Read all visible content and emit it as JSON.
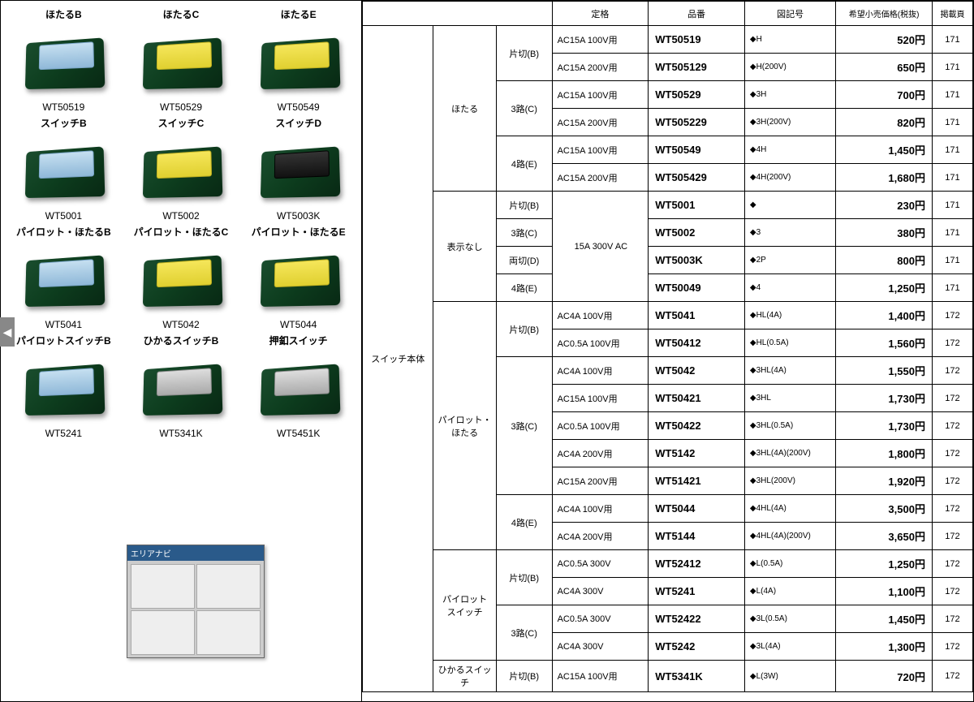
{
  "headers": {
    "rating": "定格",
    "part": "品番",
    "symbol": "図記号",
    "price": "希望小売価格(税抜)",
    "page": "掲載頁"
  },
  "sideCategory": "スイッチ本体",
  "products": [
    {
      "label": "ほたるB",
      "code": "WT50519",
      "color": "blue"
    },
    {
      "label": "ほたるC",
      "code": "WT50529",
      "color": "yellow"
    },
    {
      "label": "ほたるE",
      "code": "WT50549",
      "color": "yellow"
    },
    {
      "label": "スイッチB",
      "code": "WT5001",
      "color": "blue"
    },
    {
      "label": "スイッチC",
      "code": "WT5002",
      "color": "yellow"
    },
    {
      "label": "スイッチD",
      "code": "WT5003K",
      "color": "black"
    },
    {
      "label": "パイロット・ほたるB",
      "code": "WT5041",
      "color": "blue"
    },
    {
      "label": "パイロット・ほたるC",
      "code": "WT5042",
      "color": "yellow"
    },
    {
      "label": "パイロット・ほたるE",
      "code": "WT5044",
      "color": "yellow"
    },
    {
      "label": "パイロットスイッチB",
      "code": "WT5241",
      "color": "blue"
    },
    {
      "label": "ひかるスイッチB",
      "code": "WT5341K",
      "color": "gray"
    },
    {
      "label": "押釦スイッチ",
      "code": "WT5451K",
      "color": "gray"
    }
  ],
  "groups": [
    {
      "name": "ほたる",
      "subs": [
        {
          "name": "片切(B)",
          "rows": [
            {
              "rating": "AC15A 100V用",
              "part": "WT50519",
              "symbol": "◆H",
              "price": "520円",
              "page": "171"
            },
            {
              "rating": "AC15A 200V用",
              "part": "WT505129",
              "symbol": "◆H(200V)",
              "price": "650円",
              "page": "171"
            }
          ]
        },
        {
          "name": "3路(C)",
          "rows": [
            {
              "rating": "AC15A 100V用",
              "part": "WT50529",
              "symbol": "◆3H",
              "price": "700円",
              "page": "171"
            },
            {
              "rating": "AC15A 200V用",
              "part": "WT505229",
              "symbol": "◆3H(200V)",
              "price": "820円",
              "page": "171"
            }
          ]
        },
        {
          "name": "4路(E)",
          "rows": [
            {
              "rating": "AC15A 100V用",
              "part": "WT50549",
              "symbol": "◆4H",
              "price": "1,450円",
              "page": "171"
            },
            {
              "rating": "AC15A 200V用",
              "part": "WT505429",
              "symbol": "◆4H(200V)",
              "price": "1,680円",
              "page": "171"
            }
          ]
        }
      ]
    },
    {
      "name": "表示なし",
      "sharedRating": "15A 300V AC",
      "subs": [
        {
          "name": "片切(B)",
          "rows": [
            {
              "part": "WT5001",
              "symbol": "◆",
              "price": "230円",
              "page": "171"
            }
          ]
        },
        {
          "name": "3路(C)",
          "rows": [
            {
              "part": "WT5002",
              "symbol": "◆3",
              "price": "380円",
              "page": "171"
            }
          ]
        },
        {
          "name": "両切(D)",
          "rows": [
            {
              "part": "WT5003K",
              "symbol": "◆2P",
              "price": "800円",
              "page": "171"
            }
          ]
        },
        {
          "name": "4路(E)",
          "rows": [
            {
              "part": "WT50049",
              "symbol": "◆4",
              "price": "1,250円",
              "page": "171"
            }
          ]
        }
      ]
    },
    {
      "name": "パイロット・\nほたる",
      "subs": [
        {
          "name": "片切(B)",
          "rows": [
            {
              "rating": "AC4A 100V用",
              "part": "WT5041",
              "symbol": "◆HL(4A)",
              "price": "1,400円",
              "page": "172"
            },
            {
              "rating": "AC0.5A 100V用",
              "part": "WT50412",
              "symbol": "◆HL(0.5A)",
              "price": "1,560円",
              "page": "172"
            }
          ]
        },
        {
          "name": "3路(C)",
          "rows": [
            {
              "rating": "AC4A 100V用",
              "part": "WT5042",
              "symbol": "◆3HL(4A)",
              "price": "1,550円",
              "page": "172"
            },
            {
              "rating": "AC15A 100V用",
              "part": "WT50421",
              "symbol": "◆3HL",
              "price": "1,730円",
              "page": "172"
            },
            {
              "rating": "AC0.5A 100V用",
              "part": "WT50422",
              "symbol": "◆3HL(0.5A)",
              "price": "1,730円",
              "page": "172"
            },
            {
              "rating": "AC4A 200V用",
              "part": "WT5142",
              "symbol": "◆3HL(4A)(200V)",
              "price": "1,800円",
              "page": "172"
            },
            {
              "rating": "AC15A 200V用",
              "part": "WT51421",
              "symbol": "◆3HL(200V)",
              "price": "1,920円",
              "page": "172"
            }
          ]
        },
        {
          "name": "4路(E)",
          "rows": [
            {
              "rating": "AC4A 100V用",
              "part": "WT5044",
              "symbol": "◆4HL(4A)",
              "price": "3,500円",
              "page": "172"
            },
            {
              "rating": "AC4A 200V用",
              "part": "WT5144",
              "symbol": "◆4HL(4A)(200V)",
              "price": "3,650円",
              "page": "172"
            }
          ]
        }
      ]
    },
    {
      "name": "パイロット\nスイッチ",
      "subs": [
        {
          "name": "片切(B)",
          "rows": [
            {
              "rating": "AC0.5A 300V",
              "part": "WT52412",
              "symbol": "◆L(0.5A)",
              "price": "1,250円",
              "page": "172"
            },
            {
              "rating": "AC4A 300V",
              "part": "WT5241",
              "symbol": "◆L(4A)",
              "price": "1,100円",
              "page": "172"
            }
          ]
        },
        {
          "name": "3路(C)",
          "rows": [
            {
              "rating": "AC0.5A 300V",
              "part": "WT52422",
              "symbol": "◆3L(0.5A)",
              "price": "1,450円",
              "page": "172"
            },
            {
              "rating": "AC4A 300V",
              "part": "WT5242",
              "symbol": "◆3L(4A)",
              "price": "1,300円",
              "page": "172"
            }
          ]
        }
      ]
    },
    {
      "name": "ひかるスイッチ",
      "subs": [
        {
          "name": "片切(B)",
          "rows": [
            {
              "rating": "AC15A 100V用",
              "part": "WT5341K",
              "symbol": "◆L(3W)",
              "price": "720円",
              "page": "172"
            }
          ]
        }
      ]
    }
  ],
  "popup": {
    "title": "エリアナビ"
  }
}
